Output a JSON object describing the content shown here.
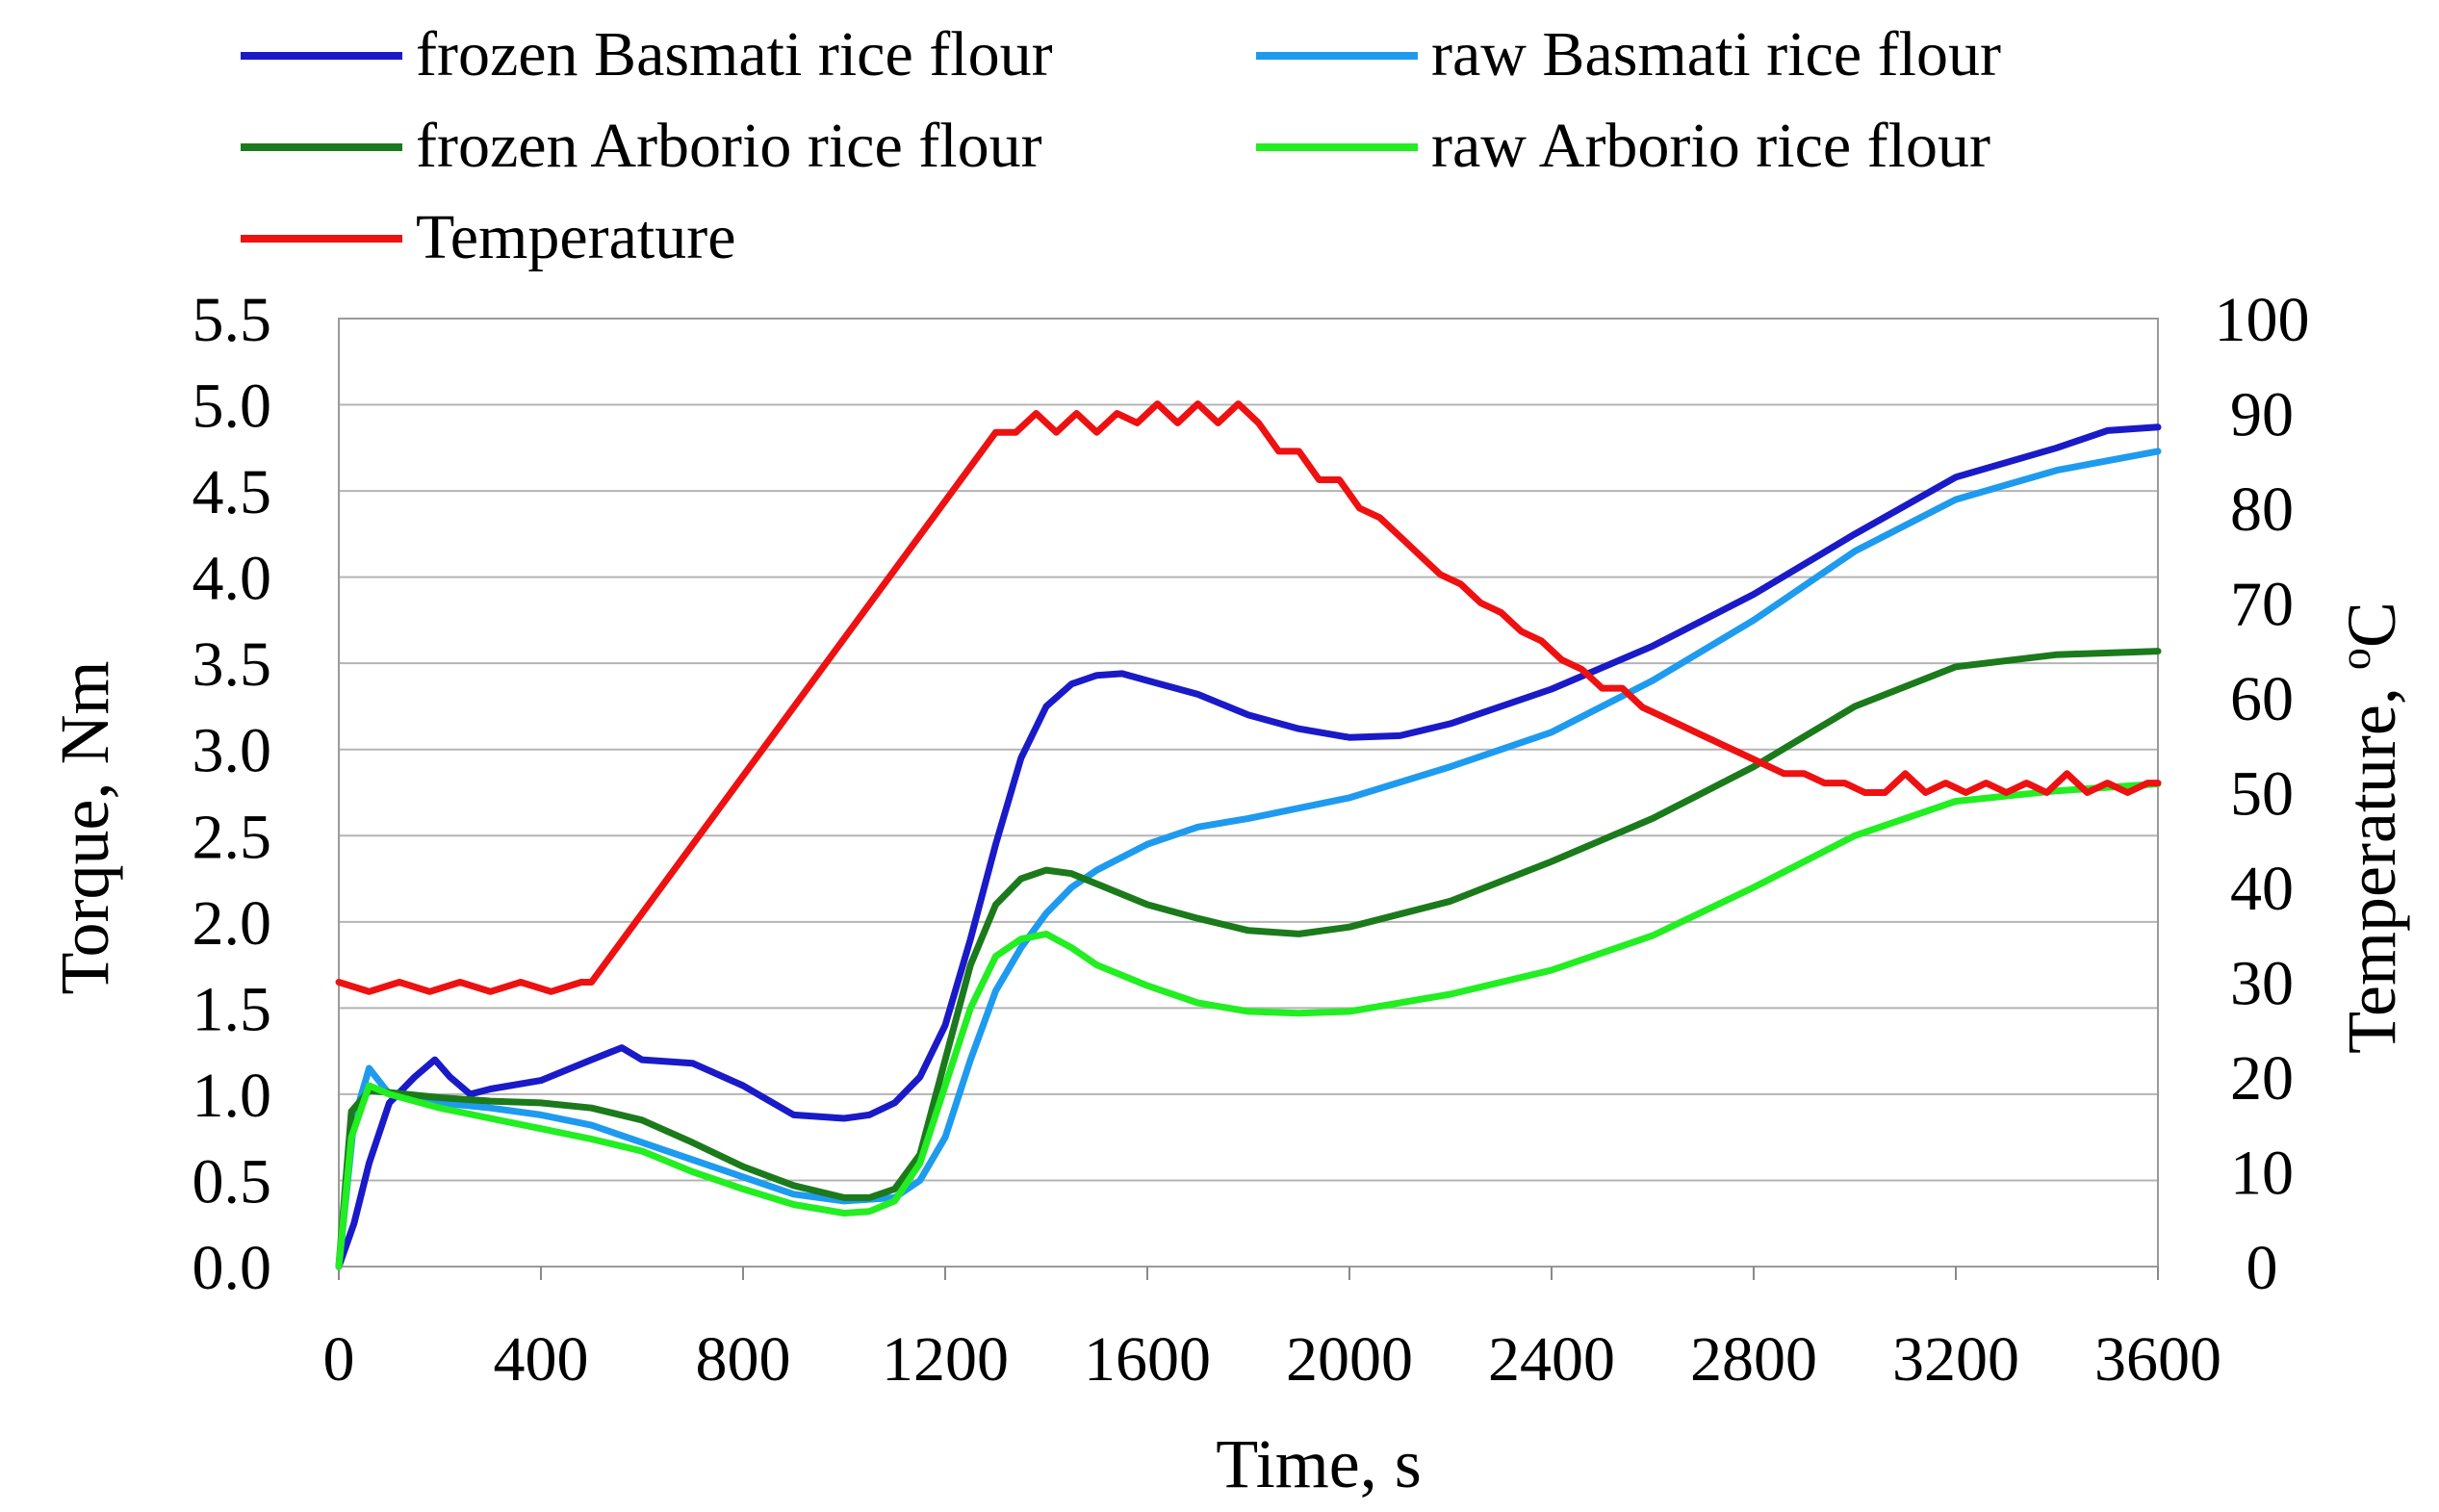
{
  "chart_data": {
    "type": "line",
    "title": "",
    "xlabel": "Time, s",
    "ylabel_left": "Torque, Nm",
    "ylabel_right": "Temperature, °C",
    "xlim": [
      0,
      3600
    ],
    "ylim_left": [
      0.0,
      5.5
    ],
    "ylim_right": [
      0,
      100
    ],
    "x_ticks": [
      "0",
      "400",
      "800",
      "1200",
      "1600",
      "2000",
      "2400",
      "2800",
      "3200",
      "3600"
    ],
    "y_left_ticks": [
      "0.0",
      "0.5",
      "1.0",
      "1.5",
      "2.0",
      "2.5",
      "3.0",
      "3.5",
      "4.0",
      "4.5",
      "5.0",
      "5.5"
    ],
    "y_right_ticks": [
      "0",
      "10",
      "20",
      "30",
      "40",
      "50",
      "60",
      "70",
      "80",
      "90",
      "100"
    ],
    "grid": "horizontal",
    "legend_position": "top",
    "series": [
      {
        "name": "frozen Basmati rice flour",
        "axis": "left",
        "color": "#1A1AC8",
        "x": [
          0,
          30,
          60,
          100,
          150,
          190,
          220,
          260,
          300,
          400,
          500,
          560,
          600,
          700,
          800,
          900,
          1000,
          1050,
          1100,
          1150,
          1200,
          1250,
          1300,
          1350,
          1400,
          1450,
          1500,
          1550,
          1600,
          1700,
          1800,
          1900,
          2000,
          2100,
          2200,
          2400,
          2600,
          2800,
          3000,
          3200,
          3400,
          3500,
          3600
        ],
        "y": [
          0.0,
          0.25,
          0.6,
          0.95,
          1.1,
          1.2,
          1.1,
          1.0,
          1.03,
          1.08,
          1.2,
          1.27,
          1.2,
          1.18,
          1.05,
          0.88,
          0.86,
          0.88,
          0.95,
          1.1,
          1.4,
          1.9,
          2.45,
          2.95,
          3.25,
          3.38,
          3.43,
          3.44,
          3.4,
          3.32,
          3.2,
          3.12,
          3.07,
          3.08,
          3.15,
          3.35,
          3.6,
          3.9,
          4.25,
          4.58,
          4.75,
          4.85,
          4.87
        ]
      },
      {
        "name": "raw Basmati rice flour",
        "axis": "left",
        "color": "#1E9BEF",
        "x": [
          0,
          30,
          60,
          100,
          200,
          300,
          400,
          500,
          600,
          700,
          800,
          900,
          1000,
          1100,
          1150,
          1200,
          1250,
          1300,
          1350,
          1400,
          1450,
          1500,
          1600,
          1700,
          1800,
          2000,
          2200,
          2400,
          2600,
          2800,
          3000,
          3200,
          3400,
          3600
        ],
        "y": [
          0.0,
          0.85,
          1.15,
          1.0,
          0.95,
          0.92,
          0.88,
          0.82,
          0.72,
          0.62,
          0.52,
          0.42,
          0.38,
          0.4,
          0.5,
          0.75,
          1.2,
          1.6,
          1.85,
          2.05,
          2.2,
          2.3,
          2.45,
          2.55,
          2.6,
          2.72,
          2.9,
          3.1,
          3.4,
          3.75,
          4.15,
          4.45,
          4.62,
          4.73
        ]
      },
      {
        "name": "frozen Arborio rice flour",
        "axis": "left",
        "color": "#1B7A1B",
        "x": [
          0,
          25,
          60,
          100,
          200,
          300,
          400,
          500,
          600,
          700,
          800,
          900,
          1000,
          1050,
          1100,
          1150,
          1200,
          1250,
          1300,
          1350,
          1400,
          1450,
          1500,
          1600,
          1700,
          1800,
          1900,
          2000,
          2200,
          2400,
          2600,
          2800,
          3000,
          3200,
          3400,
          3600
        ],
        "y": [
          0.0,
          0.9,
          1.02,
          1.01,
          0.98,
          0.96,
          0.95,
          0.92,
          0.85,
          0.72,
          0.58,
          0.47,
          0.4,
          0.4,
          0.45,
          0.65,
          1.2,
          1.75,
          2.1,
          2.25,
          2.3,
          2.28,
          2.22,
          2.1,
          2.02,
          1.95,
          1.93,
          1.97,
          2.12,
          2.35,
          2.6,
          2.9,
          3.25,
          3.48,
          3.55,
          3.57
        ]
      },
      {
        "name": "raw Arborio rice flour",
        "axis": "left",
        "color": "#22EE22",
        "x": [
          0,
          25,
          60,
          100,
          200,
          300,
          400,
          500,
          600,
          700,
          800,
          900,
          1000,
          1050,
          1100,
          1150,
          1200,
          1250,
          1300,
          1350,
          1400,
          1450,
          1500,
          1600,
          1700,
          1800,
          1900,
          2000,
          2200,
          2400,
          2600,
          2800,
          3000,
          3200,
          3400,
          3600
        ],
        "y": [
          0.0,
          0.75,
          1.05,
          1.0,
          0.92,
          0.86,
          0.8,
          0.74,
          0.67,
          0.55,
          0.45,
          0.36,
          0.31,
          0.32,
          0.38,
          0.6,
          1.05,
          1.5,
          1.8,
          1.9,
          1.93,
          1.85,
          1.75,
          1.63,
          1.53,
          1.48,
          1.47,
          1.48,
          1.58,
          1.72,
          1.92,
          2.2,
          2.5,
          2.7,
          2.76,
          2.8
        ]
      },
      {
        "name": "Temperature",
        "axis": "right",
        "color": "#EE1111",
        "x": [
          0,
          60,
          120,
          180,
          240,
          300,
          360,
          420,
          480,
          500,
          1300,
          1340,
          1380,
          1420,
          1460,
          1500,
          1540,
          1580,
          1620,
          1660,
          1700,
          1740,
          1780,
          1820,
          1860,
          1900,
          1940,
          1980,
          2020,
          2060,
          2100,
          2140,
          2180,
          2220,
          2260,
          2300,
          2340,
          2380,
          2420,
          2460,
          2500,
          2540,
          2580,
          2620,
          2660,
          2700,
          2740,
          2780,
          2820,
          2860,
          2900,
          2940,
          2980,
          3020,
          3060,
          3100,
          3140,
          3180,
          3220,
          3260,
          3300,
          3340,
          3380,
          3420,
          3460,
          3500,
          3540,
          3580,
          3600
        ],
        "y": [
          30,
          29,
          30,
          29,
          30,
          29,
          30,
          29,
          30,
          30,
          88,
          88,
          90,
          88,
          90,
          88,
          90,
          89,
          91,
          89,
          91,
          89,
          91,
          89,
          86,
          86,
          83,
          83,
          80,
          79,
          77,
          75,
          73,
          72,
          70,
          69,
          67,
          66,
          64,
          63,
          61,
          61,
          59,
          58,
          57,
          56,
          55,
          54,
          53,
          52,
          52,
          51,
          51,
          50,
          50,
          52,
          50,
          51,
          50,
          51,
          50,
          51,
          50,
          52,
          50,
          51,
          50,
          51,
          51
        ]
      }
    ]
  },
  "legend": {
    "frozen_basmati": "frozen Basmati rice flour",
    "raw_basmati": "raw Basmati rice flour",
    "frozen_arborio": "frozen Arborio rice flour",
    "raw_arborio": "raw Arborio rice flour",
    "temperature": "Temperature"
  },
  "axes": {
    "xlabel": "Time, s",
    "ylabel_left": "Torque, Nm",
    "ylabel_right_main": "Temperature, ",
    "ylabel_right_sup": "o",
    "ylabel_right_unit": "C"
  }
}
